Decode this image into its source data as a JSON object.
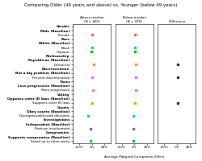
{
  "chart_data": {
    "type": "forest",
    "title": "Comparing Older (49 years and above) vs. Younger (below 49 years)",
    "xlabel": "Average Marginal Component Effect",
    "categories": [
      "Gender",
      "Male (Baseline)",
      "Female",
      "Race",
      "White (Baseline)",
      "Black",
      "Hispanic",
      "Partisanship",
      "Republican (Baseline)",
      "Democrat",
      "Discrimination",
      "Not a big problem (Baseline)",
      "Prevent discrimination",
      "Taxes",
      "Less progressive (Baseline)",
      "More progressive",
      "Voting",
      "Opposes voter ID laws (Baseline)",
      "Supports voter ID laws",
      "Courts",
      "Obey courts (Baseline)",
      "Disregard politicized decisions",
      "Investigations",
      "Independent (Baseline)",
      "Partisan involvement",
      "Compromise",
      "Supports compromise (Baseline)",
      "Stand up to other party"
    ],
    "marker": "square",
    "xlim": [
      -0.3,
      0.3
    ],
    "xticks": [
      {
        "value": -0.2,
        "label": "-20%"
      },
      {
        "value": 0.0,
        "label": "0%"
      },
      {
        "value": 0.2,
        "label": "20%"
      }
    ],
    "series": [
      {
        "name": "Above median\n(N = 483)",
        "values": [
          null,
          null,
          0.01,
          null,
          null,
          0.005,
          -0.005,
          null,
          null,
          0.03,
          null,
          null,
          0.01,
          null,
          null,
          0.015,
          null,
          null,
          0.01,
          null,
          null,
          -0.055,
          null,
          null,
          -0.015,
          null,
          null,
          -0.02
        ],
        "errors": [
          null,
          null,
          0.008,
          null,
          null,
          0.006,
          0.008,
          null,
          null,
          0.01,
          null,
          null,
          0.008,
          null,
          null,
          0.008,
          null,
          null,
          0.008,
          null,
          null,
          0.01,
          null,
          null,
          0.012,
          null,
          null,
          0.01
        ],
        "colors": [
          null,
          null,
          "#ff6666",
          null,
          null,
          "#00cccc",
          "#00cc00",
          null,
          null,
          "#ff9900",
          null,
          null,
          "#ff66cc",
          null,
          null,
          "#ff66ff",
          null,
          null,
          "#99cc00",
          null,
          null,
          "#00ccff",
          null,
          null,
          "#6666ff",
          null,
          null,
          "#00cc66"
        ]
      },
      {
        "name": "Below median\n(N = 478)",
        "values": [
          null,
          null,
          0.012,
          null,
          null,
          0.005,
          0.005,
          null,
          null,
          0.025,
          null,
          null,
          0.025,
          null,
          null,
          0.02,
          null,
          null,
          0.005,
          null,
          null,
          -0.015,
          null,
          null,
          -0.02,
          null,
          null,
          -0.02
        ],
        "errors": [
          null,
          null,
          0.008,
          null,
          null,
          0.006,
          0.008,
          null,
          null,
          0.01,
          null,
          null,
          0.01,
          null,
          null,
          0.008,
          null,
          null,
          0.008,
          null,
          null,
          0.012,
          null,
          null,
          0.012,
          null,
          null,
          0.01
        ],
        "colors": [
          null,
          null,
          "#ff6666",
          null,
          null,
          "#00cccc",
          "#00cc00",
          null,
          null,
          "#ff9900",
          null,
          null,
          "#ff66cc",
          null,
          null,
          "#ff66ff",
          null,
          null,
          "#99cc00",
          null,
          null,
          "#00ccff",
          null,
          null,
          "#6666ff",
          null,
          null,
          "#00cc66"
        ]
      },
      {
        "name": "Difference",
        "values": [
          null,
          null,
          null,
          null,
          null,
          null,
          null,
          null,
          null,
          0.008,
          null,
          null,
          0.008,
          null,
          null,
          null,
          null,
          null,
          0.01,
          null,
          null,
          null,
          null,
          null,
          null,
          null,
          null,
          null
        ],
        "errors": [
          null,
          null,
          null,
          null,
          null,
          null,
          null,
          null,
          null,
          0.006,
          null,
          null,
          0.006,
          null,
          null,
          null,
          null,
          null,
          0.006,
          null,
          null,
          null,
          null,
          null,
          null,
          null,
          null,
          null
        ],
        "color": "#333333"
      }
    ]
  }
}
